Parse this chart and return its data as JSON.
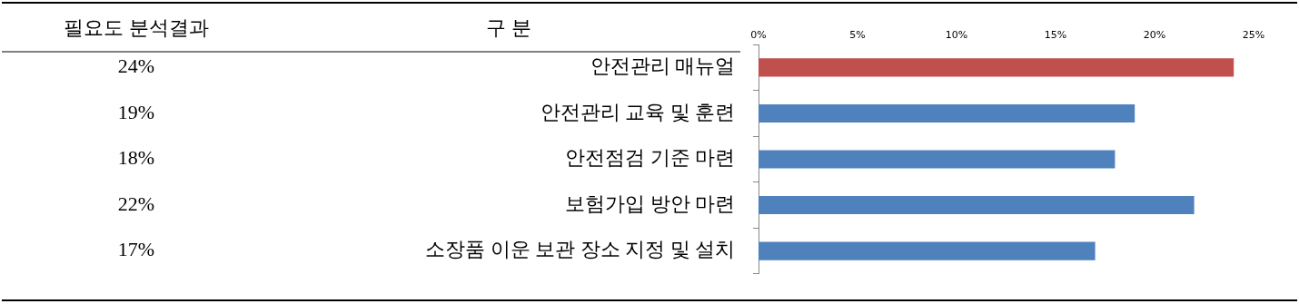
{
  "chart_data": {
    "type": "bar",
    "orientation": "horizontal",
    "categories": [
      "안전관리 매뉴얼",
      "안전관리 교육 및 훈련",
      "안전점검 기준 마련",
      "보험가입 방안 마련",
      "소장품 이운 보관 장소 지정 및 설치"
    ],
    "values": [
      24,
      19,
      18,
      22,
      17
    ],
    "value_labels": [
      "24%",
      "19%",
      "18%",
      "22%",
      "17%"
    ],
    "colors": [
      "#c0504d",
      "#4f81bd",
      "#4f81bd",
      "#4f81bd",
      "#4f81bd"
    ],
    "xlim": [
      0,
      25
    ],
    "xticks": [
      {
        "value": 0,
        "label": "0%"
      },
      {
        "value": 5,
        "label": "5%"
      },
      {
        "value": 10,
        "label": "10%"
      },
      {
        "value": 15,
        "label": "15%"
      },
      {
        "value": 20,
        "label": "20%"
      },
      {
        "value": 25,
        "label": "25%"
      }
    ],
    "annotations": [
      "구 분",
      "필요도 분석결과"
    ],
    "grid": false,
    "legend": false
  }
}
